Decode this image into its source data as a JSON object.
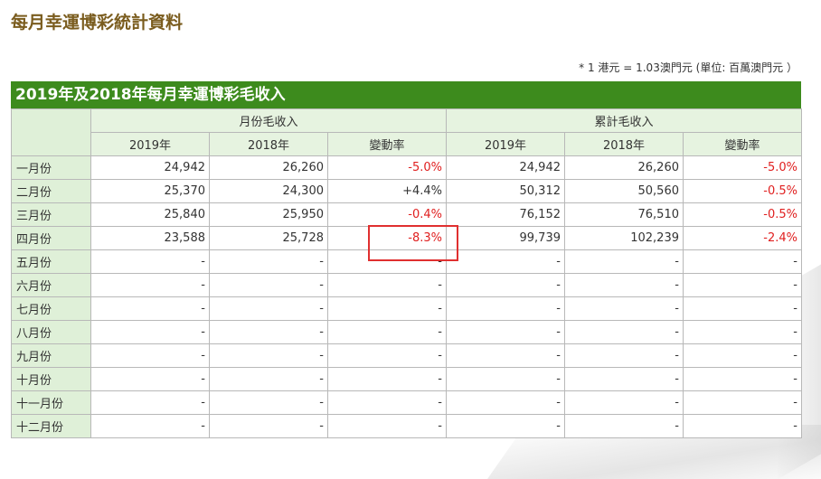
{
  "page_title": "每月幸運博彩統計資料",
  "unit_note": "* 1 港元 = 1.03澳門元 (單位: 百萬澳門元 ）",
  "table_title": "2019年及2018年每月幸運博彩毛收入",
  "group_monthly": "月份毛收入",
  "group_cumulative": "累計毛收入",
  "col_2019": "2019年",
  "col_2018": "2018年",
  "col_change": "變動率",
  "rows": [
    {
      "month": "一月份",
      "m2019": "24,942",
      "m2018": "26,260",
      "mchg": "-5.0%",
      "c2019": "24,942",
      "c2018": "26,260",
      "cchg": "-5.0%"
    },
    {
      "month": "二月份",
      "m2019": "25,370",
      "m2018": "24,300",
      "mchg": "+4.4%",
      "c2019": "50,312",
      "c2018": "50,560",
      "cchg": "-0.5%"
    },
    {
      "month": "三月份",
      "m2019": "25,840",
      "m2018": "25,950",
      "mchg": "-0.4%",
      "c2019": "76,152",
      "c2018": "76,510",
      "cchg": "-0.5%"
    },
    {
      "month": "四月份",
      "m2019": "23,588",
      "m2018": "25,728",
      "mchg": "-8.3%",
      "c2019": "99,739",
      "c2018": "102,239",
      "cchg": "-2.4%"
    },
    {
      "month": "五月份",
      "m2019": "-",
      "m2018": "-",
      "mchg": "-",
      "c2019": "-",
      "c2018": "-",
      "cchg": "-"
    },
    {
      "month": "六月份",
      "m2019": "-",
      "m2018": "-",
      "mchg": "-",
      "c2019": "-",
      "c2018": "-",
      "cchg": "-"
    },
    {
      "month": "七月份",
      "m2019": "-",
      "m2018": "-",
      "mchg": "-",
      "c2019": "-",
      "c2018": "-",
      "cchg": "-"
    },
    {
      "month": "八月份",
      "m2019": "-",
      "m2018": "-",
      "mchg": "-",
      "c2019": "-",
      "c2018": "-",
      "cchg": "-"
    },
    {
      "month": "九月份",
      "m2019": "-",
      "m2018": "-",
      "mchg": "-",
      "c2019": "-",
      "c2018": "-",
      "cchg": "-"
    },
    {
      "month": "十月份",
      "m2019": "-",
      "m2018": "-",
      "mchg": "-",
      "c2019": "-",
      "c2018": "-",
      "cchg": "-"
    },
    {
      "month": "十一月份",
      "m2019": "-",
      "m2018": "-",
      "mchg": "-",
      "c2019": "-",
      "c2018": "-",
      "cchg": "-"
    },
    {
      "month": "十二月份",
      "m2019": "-",
      "m2018": "-",
      "mchg": "-",
      "c2019": "-",
      "c2018": "-",
      "cchg": "-"
    }
  ],
  "colors": {
    "title_brown": "#7a5c1e",
    "header_green": "#3d8b1d",
    "header_cell_bg": "#e6f3e0",
    "negative_red": "#e02020",
    "highlight_border": "#e03030"
  }
}
